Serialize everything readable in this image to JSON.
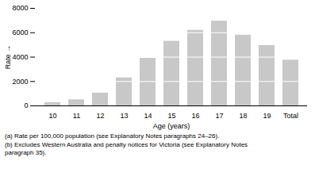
{
  "chart_data": {
    "type": "bar",
    "categories": [
      "10",
      "11",
      "12",
      "13",
      "14",
      "15",
      "16",
      "17",
      "18",
      "19",
      "Total"
    ],
    "values": [
      270,
      500,
      1050,
      2300,
      3900,
      5300,
      6200,
      6950,
      5800,
      4950,
      3750
    ],
    "color": "#c8c8c8",
    "xlabel": "Age (years)",
    "ylabel": "Rate",
    "ylim": [
      0,
      8000
    ],
    "yticks": [
      0,
      2000,
      4000,
      6000,
      8000
    ],
    "annotations": [
      "(a) Rate per 100,000 population (see Explanatory Notes paragraphs 24–26).",
      "(b) Excludes Western Australia and penalty notices for Victoria (see Explanatory Notes\nparagraph 35)."
    ]
  }
}
